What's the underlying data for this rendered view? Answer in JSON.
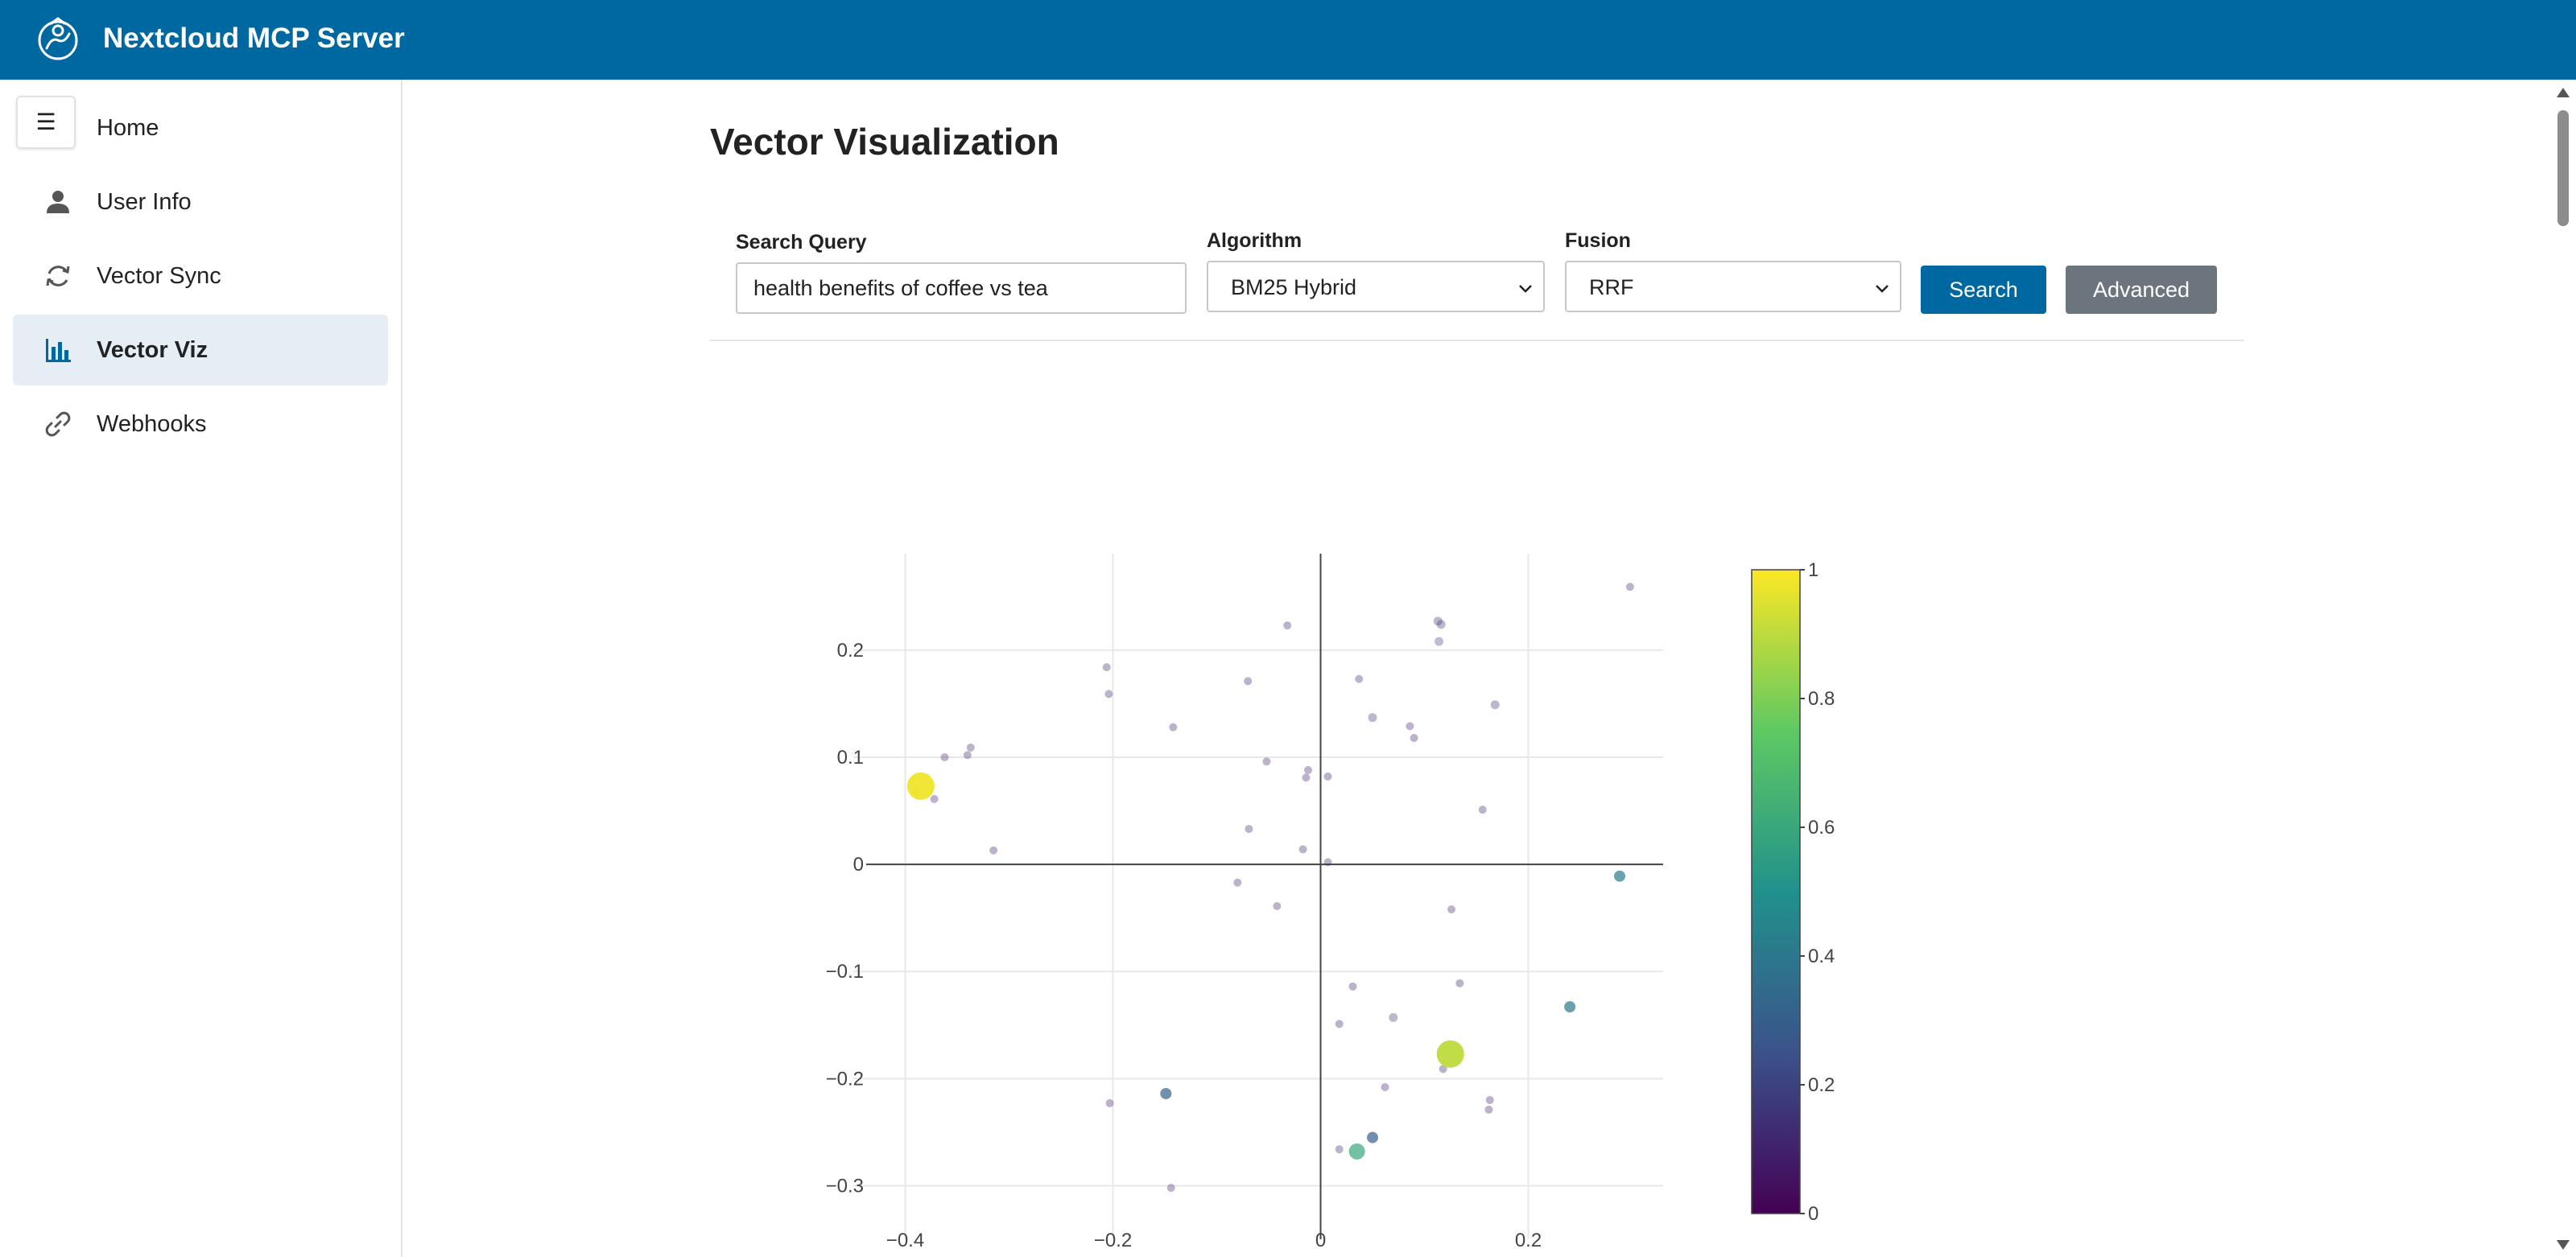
{
  "app": {
    "title": "Nextcloud MCP Server"
  },
  "sidebar": {
    "toggle_glyph": "☰",
    "items": [
      {
        "label": "Home",
        "icon": "home-icon"
      },
      {
        "label": "User Info",
        "icon": "user-icon"
      },
      {
        "label": "Vector Sync",
        "icon": "sync-icon"
      },
      {
        "label": "Vector Viz",
        "icon": "bar-chart-icon",
        "active": true
      },
      {
        "label": "Webhooks",
        "icon": "link-icon"
      }
    ]
  },
  "page": {
    "title": "Vector Visualization"
  },
  "form": {
    "search_label": "Search Query",
    "search_value": "health benefits of coffee vs tea",
    "algorithm_label": "Algorithm",
    "algorithm_value": "BM25 Hybrid",
    "fusion_label": "Fusion",
    "fusion_value": "RRF",
    "search_button": "Search",
    "advanced_button": "Advanced"
  },
  "colors": {
    "brand": "#0068a0",
    "secondary": "#6c757d",
    "active_nav_bg": "#e6eef5"
  },
  "chart_data": {
    "type": "scatter",
    "xlabel": "",
    "ylabel": "",
    "xlim": [
      -0.45,
      0.35
    ],
    "ylim": [
      -0.35,
      0.29
    ],
    "x_ticks": [
      "−0.4",
      "−0.2",
      "0",
      "0.2"
    ],
    "y_ticks": [
      "0.2",
      "0.1",
      "0",
      "−0.1",
      "−0.2",
      "−0.3"
    ],
    "colorbar": {
      "min": 0,
      "max": 1,
      "ticks": [
        "1",
        "0.8",
        "0.6",
        "0.4",
        "0.2",
        "0"
      ],
      "colorscale": "viridis"
    },
    "points": [
      {
        "x": -0.385,
        "y": 0.073,
        "score": 0.98
      },
      {
        "x": 0.125,
        "y": -0.177,
        "score": 0.9
      },
      {
        "x": 0.035,
        "y": -0.268,
        "score": 0.6
      },
      {
        "x": 0.288,
        "y": -0.011,
        "score": 0.42
      },
      {
        "x": 0.24,
        "y": -0.133,
        "score": 0.4
      },
      {
        "x": -0.149,
        "y": -0.214,
        "score": 0.3
      },
      {
        "x": 0.05,
        "y": -0.255,
        "score": 0.3
      },
      {
        "x": 0.114,
        "y": 0.208,
        "score": 0.22
      },
      {
        "x": 0.113,
        "y": 0.227,
        "score": 0.15
      },
      {
        "x": 0.116,
        "y": 0.224,
        "score": 0.15
      },
      {
        "x": 0.05,
        "y": 0.137,
        "score": 0.15
      },
      {
        "x": 0.168,
        "y": 0.149,
        "score": 0.15
      },
      {
        "x": 0.07,
        "y": -0.143,
        "score": 0.15
      },
      {
        "x": -0.39,
        "y": 0.067,
        "score": 0.1
      },
      {
        "x": 0.298,
        "y": 0.259,
        "score": 0.1
      },
      {
        "x": -0.032,
        "y": 0.223,
        "score": 0.1
      },
      {
        "x": -0.206,
        "y": 0.184,
        "score": 0.1
      },
      {
        "x": -0.204,
        "y": 0.159,
        "score": 0.1
      },
      {
        "x": -0.07,
        "y": 0.171,
        "score": 0.1
      },
      {
        "x": 0.037,
        "y": 0.173,
        "score": 0.1
      },
      {
        "x": -0.142,
        "y": 0.128,
        "score": 0.1
      },
      {
        "x": 0.086,
        "y": 0.129,
        "score": 0.1
      },
      {
        "x": 0.09,
        "y": 0.118,
        "score": 0.1
      },
      {
        "x": -0.337,
        "y": 0.109,
        "score": 0.1
      },
      {
        "x": -0.34,
        "y": 0.102,
        "score": 0.1
      },
      {
        "x": -0.362,
        "y": 0.1,
        "score": 0.1
      },
      {
        "x": -0.052,
        "y": 0.096,
        "score": 0.1
      },
      {
        "x": -0.012,
        "y": 0.088,
        "score": 0.1
      },
      {
        "x": -0.014,
        "y": 0.081,
        "score": 0.1
      },
      {
        "x": 0.007,
        "y": 0.082,
        "score": 0.1
      },
      {
        "x": -0.372,
        "y": 0.061,
        "score": 0.1
      },
      {
        "x": 0.156,
        "y": 0.051,
        "score": 0.1
      },
      {
        "x": -0.069,
        "y": 0.033,
        "score": 0.1
      },
      {
        "x": -0.315,
        "y": 0.013,
        "score": 0.1
      },
      {
        "x": -0.017,
        "y": 0.014,
        "score": 0.1
      },
      {
        "x": 0.007,
        "y": 0.002,
        "score": 0.1
      },
      {
        "x": -0.08,
        "y": -0.017,
        "score": 0.1
      },
      {
        "x": -0.042,
        "y": -0.039,
        "score": 0.1
      },
      {
        "x": 0.126,
        "y": -0.042,
        "score": 0.1
      },
      {
        "x": 0.134,
        "y": -0.111,
        "score": 0.1
      },
      {
        "x": 0.031,
        "y": -0.114,
        "score": 0.1
      },
      {
        "x": 0.018,
        "y": -0.149,
        "score": 0.1
      },
      {
        "x": 0.118,
        "y": -0.191,
        "score": 0.1
      },
      {
        "x": 0.062,
        "y": -0.208,
        "score": 0.1
      },
      {
        "x": 0.163,
        "y": -0.22,
        "score": 0.1
      },
      {
        "x": 0.162,
        "y": -0.229,
        "score": 0.1
      },
      {
        "x": -0.203,
        "y": -0.223,
        "score": 0.1
      },
      {
        "x": 0.018,
        "y": -0.266,
        "score": 0.1
      },
      {
        "x": -0.144,
        "y": -0.302,
        "score": 0.1
      }
    ]
  }
}
